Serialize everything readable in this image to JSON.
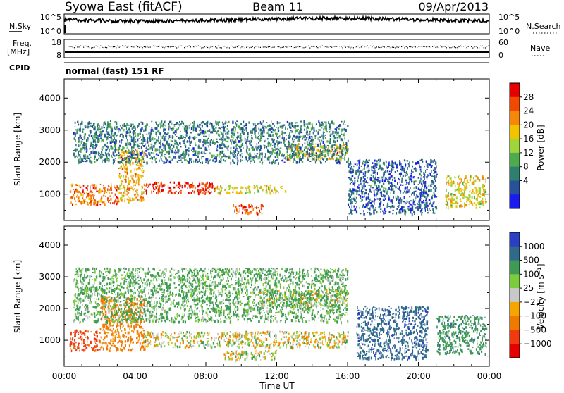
{
  "header": {
    "station": "Syowa East (fitACF)",
    "beam": "Beam 11",
    "date": "09/Apr/2013"
  },
  "status_panels": {
    "nsky_label": "N.Sky",
    "nsky_ticks": [
      "10^5",
      "10^0"
    ],
    "nsearch_label": "N.Search",
    "nsearch_ticks": [
      "10^5",
      "10^0"
    ],
    "freq_label": "Freq.",
    "freq_unit": "[MHz]",
    "freq_ticks": [
      "18",
      "8"
    ],
    "nave_label": "Nave",
    "nave_ticks": [
      "60",
      "0"
    ],
    "cpid_label": "CPID",
    "cpid_value": "normal (fast) 151 RF"
  },
  "axes": {
    "xlabel": "Time UT",
    "x_ticks": [
      "00:00",
      "04:00",
      "08:00",
      "12:00",
      "16:00",
      "20:00",
      "00:00"
    ],
    "ylabel": "Slant Range [km]",
    "y_ticks": [
      "1000",
      "2000",
      "3000",
      "4000"
    ]
  },
  "colorbars": {
    "power": {
      "label": "Power [dB]",
      "ticks": [
        "28",
        "24",
        "20",
        "16",
        "12",
        "8",
        "4"
      ],
      "colors": [
        "#e60000",
        "#f04a00",
        "#f5870a",
        "#f2c400",
        "#9fd43a",
        "#4faa4f",
        "#2f7f6f",
        "#27529a",
        "#1b1bf0"
      ]
    },
    "velocity": {
      "label": "Velocity [m s⁻¹]",
      "ticks": [
        "1000",
        "500",
        "100",
        "25",
        "−25",
        "−100",
        "−500",
        "−1000"
      ],
      "colors": [
        "#2a3fc4",
        "#2f6a8a",
        "#3f9a55",
        "#7ccc3c",
        "#c8c8c8",
        "#f5a500",
        "#f07a00",
        "#f03a10",
        "#e60000"
      ]
    }
  },
  "chart_data": [
    {
      "type": "heatmap",
      "title": "",
      "parameter": "Power [dB]",
      "xlabel": "Time UT",
      "ylabel": "Slant Range [km]",
      "xlim": [
        "00:00",
        "24:00"
      ],
      "ylim": [
        180,
        4600
      ],
      "clim": [
        0,
        31
      ],
      "regions": [
        {
          "t_start": 0.3,
          "t_end": 3.0,
          "range_min": 700,
          "range_max": 1350,
          "power_db": 24
        },
        {
          "t_start": 3.0,
          "t_end": 4.5,
          "range_min": 800,
          "range_max": 2400,
          "power_db": 20
        },
        {
          "t_start": 4.5,
          "t_end": 8.5,
          "range_min": 1050,
          "range_max": 1400,
          "power_db": 28
        },
        {
          "t_start": 8.5,
          "t_end": 12.5,
          "range_min": 1050,
          "range_max": 1300,
          "power_db": 18
        },
        {
          "t_start": 9.5,
          "t_end": 11.2,
          "range_min": 400,
          "range_max": 700,
          "power_db": 26
        },
        {
          "t_start": 12.5,
          "t_end": 16.0,
          "range_min": 2100,
          "range_max": 2600,
          "power_db": 18
        },
        {
          "t_start": 0.5,
          "t_end": 16.0,
          "range_min": 2000,
          "range_max": 3300,
          "power_db": 8
        },
        {
          "t_start": 16.0,
          "t_end": 21.0,
          "range_min": 400,
          "range_max": 2100,
          "power_db": 6
        },
        {
          "t_start": 21.5,
          "t_end": 23.8,
          "range_min": 600,
          "range_max": 1600,
          "power_db": 18
        }
      ]
    },
    {
      "type": "heatmap",
      "title": "",
      "parameter": "Velocity [m s-1]",
      "xlabel": "Time UT",
      "ylabel": "Slant Range [km]",
      "xlim": [
        "00:00",
        "24:00"
      ],
      "ylim": [
        180,
        4600
      ],
      "clim": [
        -1000,
        1000
      ],
      "regions": [
        {
          "t_start": 0.3,
          "t_end": 2.0,
          "range_min": 700,
          "range_max": 1350,
          "velocity_ms": -600
        },
        {
          "t_start": 2.0,
          "t_end": 4.5,
          "range_min": 700,
          "range_max": 2400,
          "velocity_ms": -200
        },
        {
          "t_start": 4.5,
          "t_end": 16.0,
          "range_min": 800,
          "range_max": 1300,
          "velocity_ms": 0
        },
        {
          "t_start": 11.0,
          "t_end": 16.0,
          "range_min": 2100,
          "range_max": 2600,
          "velocity_ms": 15
        },
        {
          "t_start": 9.0,
          "t_end": 12.0,
          "range_min": 400,
          "range_max": 700,
          "velocity_ms": 0
        },
        {
          "t_start": 0.5,
          "t_end": 16.0,
          "range_min": 1600,
          "range_max": 3300,
          "velocity_ms": 150
        },
        {
          "t_start": 16.5,
          "t_end": 20.5,
          "range_min": 400,
          "range_max": 2100,
          "velocity_ms": 900
        },
        {
          "t_start": 21.0,
          "t_end": 23.8,
          "range_min": 600,
          "range_max": 1800,
          "velocity_ms": 400
        }
      ]
    }
  ]
}
